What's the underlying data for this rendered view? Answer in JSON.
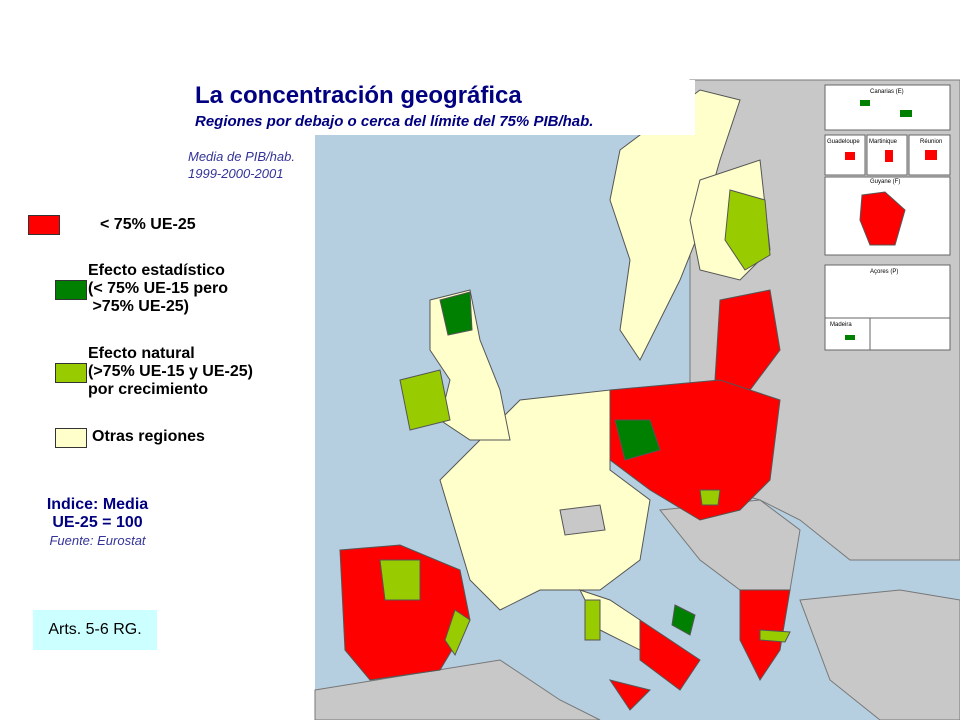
{
  "header": {
    "title": "La concentración geográfica",
    "subtitle": "Regiones por debajo o cerca del límite del 75% PIB/hab."
  },
  "note": [
    "Media de PIB/hab.",
    "1999-2000-2001"
  ],
  "legend": {
    "items": [
      {
        "lines": [
          "< 75% UE-25"
        ],
        "color": "#ff0000"
      },
      {
        "lines": [
          "Efecto estadístico",
          "(< 75% UE-15 pero",
          " >75% UE-25)"
        ],
        "color": "#008000"
      },
      {
        "lines": [
          "Efecto natural",
          "(>75% UE-15 y UE-25)",
          "por crecimiento"
        ],
        "color": "#99cc00"
      },
      {
        "lines": [
          "Otras regiones"
        ],
        "color": "#ffffcc"
      }
    ]
  },
  "index": [
    "Indice: Media",
    "UE-25 = 100"
  ],
  "source": "Fuente: Eurostat",
  "articles": "Arts. 5-6 RG.",
  "insets": [
    "Canarias (E)",
    "Guadeloupe",
    "Martinique",
    "Réunion",
    "Guyane (F)",
    "Açores (P)",
    "Madeira"
  ]
}
